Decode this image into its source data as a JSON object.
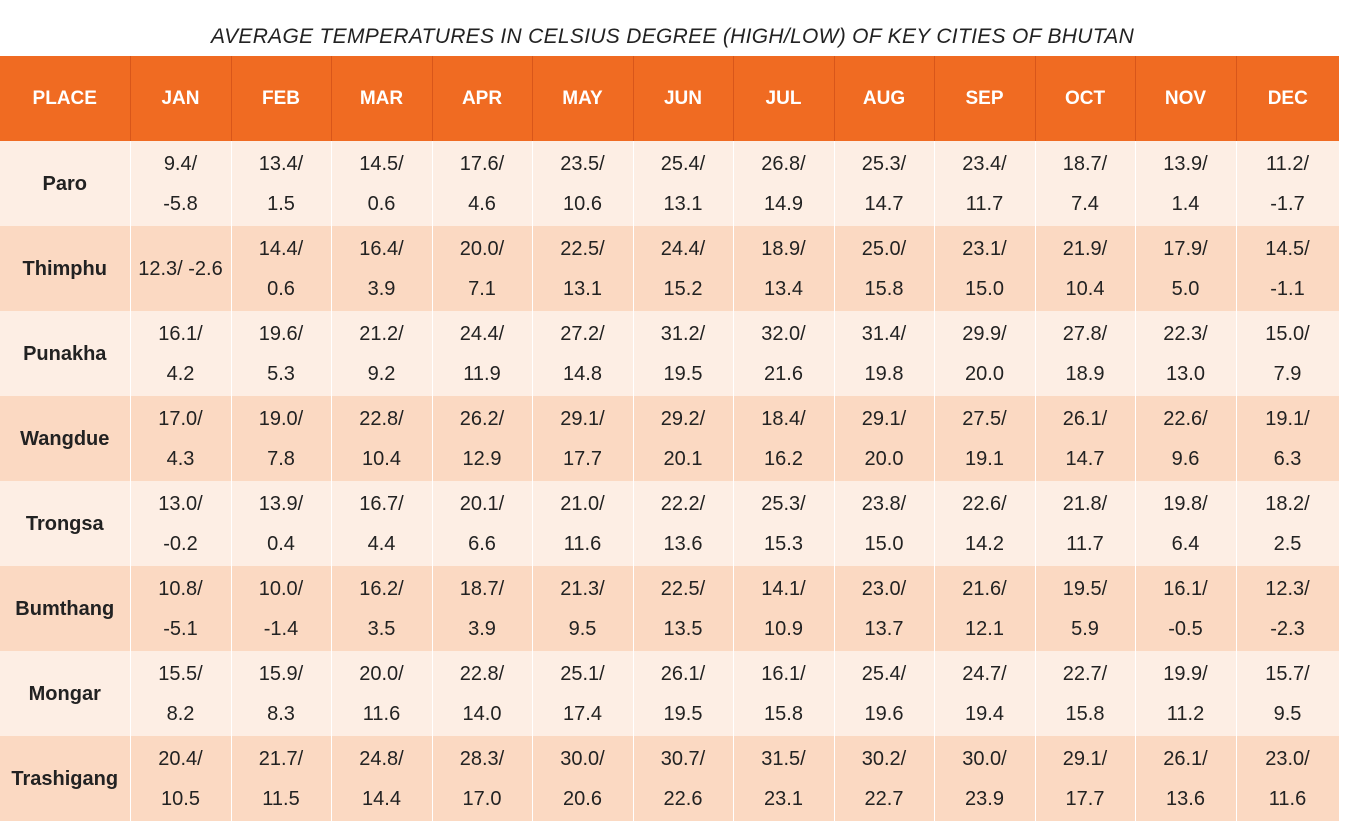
{
  "title": "AVERAGE TEMPERATURES IN CELSIUS DEGREE (HIGH/LOW) OF KEY CITIES OF BHUTAN",
  "header": {
    "place": "PLACE",
    "months": [
      "JAN",
      "FEB",
      "MAR",
      "APR",
      "MAY",
      "JUN",
      "JUL",
      "AUG",
      "SEP",
      "OCT",
      "NOV",
      "DEC"
    ]
  },
  "rows": [
    {
      "place": "Paro",
      "cells": [
        {
          "hi": "9.4/",
          "lo": "-5.8"
        },
        {
          "hi": "13.4/",
          "lo": "1.5"
        },
        {
          "hi": "14.5/",
          "lo": "0.6"
        },
        {
          "hi": "17.6/",
          "lo": "4.6"
        },
        {
          "hi": "23.5/",
          "lo": "10.6"
        },
        {
          "hi": "25.4/",
          "lo": "13.1"
        },
        {
          "hi": "26.8/",
          "lo": "14.9"
        },
        {
          "hi": "25.3/",
          "lo": "14.7"
        },
        {
          "hi": "23.4/",
          "lo": "11.7"
        },
        {
          "hi": "18.7/",
          "lo": "7.4"
        },
        {
          "hi": "13.9/",
          "lo": "1.4"
        },
        {
          "hi": "11.2/",
          "lo": "-1.7"
        }
      ]
    },
    {
      "place": "Thimphu",
      "cells": [
        {
          "hi": "12.3/ -2.6",
          "lo": ""
        },
        {
          "hi": "14.4/",
          "lo": "0.6"
        },
        {
          "hi": "16.4/",
          "lo": "3.9"
        },
        {
          "hi": "20.0/",
          "lo": "7.1"
        },
        {
          "hi": "22.5/",
          "lo": "13.1"
        },
        {
          "hi": "24.4/",
          "lo": "15.2"
        },
        {
          "hi": "18.9/",
          "lo": "13.4"
        },
        {
          "hi": "25.0/",
          "lo": "15.8"
        },
        {
          "hi": "23.1/",
          "lo": "15.0"
        },
        {
          "hi": "21.9/",
          "lo": "10.4"
        },
        {
          "hi": "17.9/",
          "lo": "5.0"
        },
        {
          "hi": "14.5/",
          "lo": "-1.1"
        }
      ]
    },
    {
      "place": "Punakha",
      "cells": [
        {
          "hi": "16.1/",
          "lo": "4.2"
        },
        {
          "hi": "19.6/",
          "lo": "5.3"
        },
        {
          "hi": "21.2/",
          "lo": "9.2"
        },
        {
          "hi": "24.4/",
          "lo": "11.9"
        },
        {
          "hi": "27.2/",
          "lo": "14.8"
        },
        {
          "hi": "31.2/",
          "lo": "19.5"
        },
        {
          "hi": "32.0/",
          "lo": "21.6"
        },
        {
          "hi": "31.4/",
          "lo": "19.8"
        },
        {
          "hi": "29.9/",
          "lo": "20.0"
        },
        {
          "hi": "27.8/",
          "lo": "18.9"
        },
        {
          "hi": "22.3/",
          "lo": "13.0"
        },
        {
          "hi": "15.0/",
          "lo": "7.9"
        }
      ]
    },
    {
      "place": "Wangdue",
      "cells": [
        {
          "hi": "17.0/",
          "lo": "4.3"
        },
        {
          "hi": "19.0/",
          "lo": "7.8"
        },
        {
          "hi": "22.8/",
          "lo": "10.4"
        },
        {
          "hi": "26.2/",
          "lo": "12.9"
        },
        {
          "hi": "29.1/",
          "lo": "17.7"
        },
        {
          "hi": "29.2/",
          "lo": "20.1"
        },
        {
          "hi": "18.4/",
          "lo": "16.2"
        },
        {
          "hi": "29.1/",
          "lo": "20.0"
        },
        {
          "hi": "27.5/",
          "lo": "19.1"
        },
        {
          "hi": "26.1/",
          "lo": "14.7"
        },
        {
          "hi": "22.6/",
          "lo": "9.6"
        },
        {
          "hi": "19.1/",
          "lo": "6.3"
        }
      ]
    },
    {
      "place": "Trongsa",
      "cells": [
        {
          "hi": "13.0/",
          "lo": "-0.2"
        },
        {
          "hi": "13.9/",
          "lo": "0.4"
        },
        {
          "hi": "16.7/",
          "lo": "4.4"
        },
        {
          "hi": "20.1/",
          "lo": "6.6"
        },
        {
          "hi": "21.0/",
          "lo": "11.6"
        },
        {
          "hi": "22.2/",
          "lo": "13.6"
        },
        {
          "hi": "25.3/",
          "lo": "15.3"
        },
        {
          "hi": "23.8/",
          "lo": "15.0"
        },
        {
          "hi": "22.6/",
          "lo": "14.2"
        },
        {
          "hi": "21.8/",
          "lo": "11.7"
        },
        {
          "hi": "19.8/",
          "lo": "6.4"
        },
        {
          "hi": "18.2/",
          "lo": "2.5"
        }
      ]
    },
    {
      "place": "Bumthang",
      "cells": [
        {
          "hi": "10.8/",
          "lo": "-5.1"
        },
        {
          "hi": "10.0/",
          "lo": "-1.4"
        },
        {
          "hi": "16.2/",
          "lo": "3.5"
        },
        {
          "hi": "18.7/",
          "lo": "3.9"
        },
        {
          "hi": "21.3/",
          "lo": "9.5"
        },
        {
          "hi": "22.5/",
          "lo": "13.5"
        },
        {
          "hi": "14.1/",
          "lo": "10.9"
        },
        {
          "hi": "23.0/",
          "lo": "13.7"
        },
        {
          "hi": "21.6/",
          "lo": "12.1"
        },
        {
          "hi": "19.5/",
          "lo": "5.9"
        },
        {
          "hi": "16.1/",
          "lo": "-0.5"
        },
        {
          "hi": "12.3/",
          "lo": "-2.3"
        }
      ]
    },
    {
      "place": "Mongar",
      "cells": [
        {
          "hi": "15.5/",
          "lo": "8.2"
        },
        {
          "hi": "15.9/",
          "lo": "8.3"
        },
        {
          "hi": "20.0/",
          "lo": "11.6"
        },
        {
          "hi": "22.8/",
          "lo": "14.0"
        },
        {
          "hi": "25.1/",
          "lo": "17.4"
        },
        {
          "hi": "26.1/",
          "lo": "19.5"
        },
        {
          "hi": "16.1/",
          "lo": "15.8"
        },
        {
          "hi": "25.4/",
          "lo": "19.6"
        },
        {
          "hi": "24.7/",
          "lo": "19.4"
        },
        {
          "hi": "22.7/",
          "lo": "15.8"
        },
        {
          "hi": "19.9/",
          "lo": "11.2"
        },
        {
          "hi": "15.7/",
          "lo": "9.5"
        }
      ]
    },
    {
      "place": "Trashigang",
      "cells": [
        {
          "hi": "20.4/",
          "lo": "10.5"
        },
        {
          "hi": "21.7/",
          "lo": "11.5"
        },
        {
          "hi": "24.8/",
          "lo": "14.4"
        },
        {
          "hi": "28.3/",
          "lo": "17.0"
        },
        {
          "hi": "30.0/",
          "lo": "20.6"
        },
        {
          "hi": "30.7/",
          "lo": "22.6"
        },
        {
          "hi": "31.5/",
          "lo": "23.1"
        },
        {
          "hi": "30.2/",
          "lo": "22.7"
        },
        {
          "hi": "30.0/",
          "lo": "23.9"
        },
        {
          "hi": "29.1/",
          "lo": "17.7"
        },
        {
          "hi": "26.1/",
          "lo": "13.6"
        },
        {
          "hi": "23.0/",
          "lo": "11.6"
        }
      ]
    }
  ]
}
